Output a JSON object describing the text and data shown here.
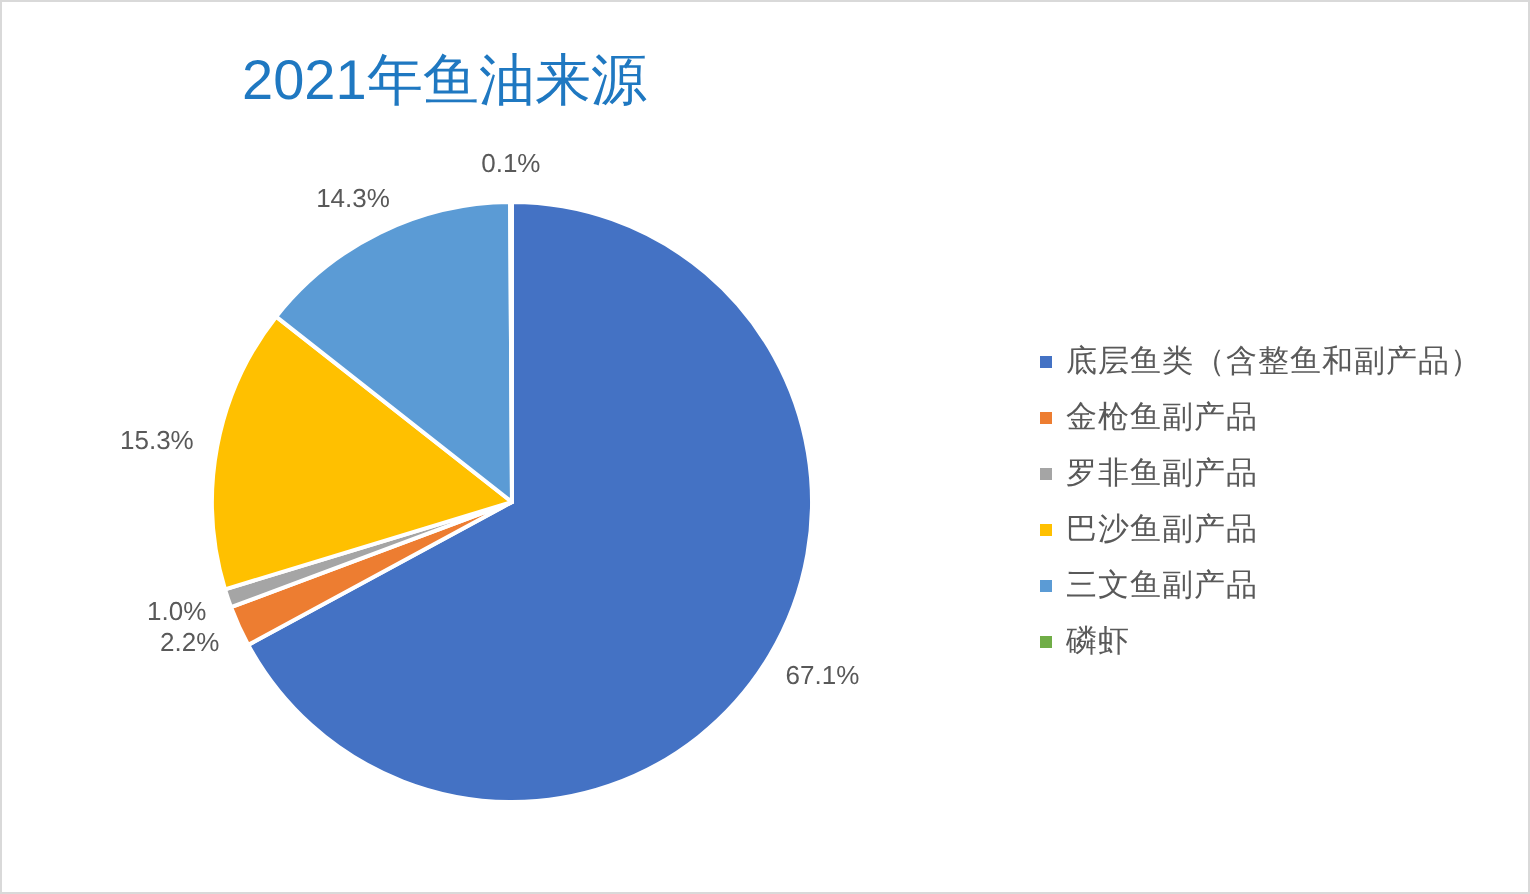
{
  "chart_data": {
    "type": "pie",
    "title": "2021年鱼油来源",
    "categories": [
      "底层鱼类（含整鱼和副产品）",
      "金枪鱼副产品",
      "罗非鱼副产品",
      "巴沙鱼副产品",
      "三文鱼副产品",
      "磷虾"
    ],
    "values": [
      67.1,
      2.2,
      1.0,
      15.3,
      14.3,
      0.1
    ],
    "colors": [
      "#4472c4",
      "#ed7d31",
      "#a5a5a5",
      "#ffc000",
      "#5b9bd5",
      "#70ad47"
    ],
    "value_labels": [
      "67.1%",
      "2.2%",
      "1.0%",
      "15.3%",
      "14.3%",
      "0.1%"
    ],
    "legend": "right"
  }
}
